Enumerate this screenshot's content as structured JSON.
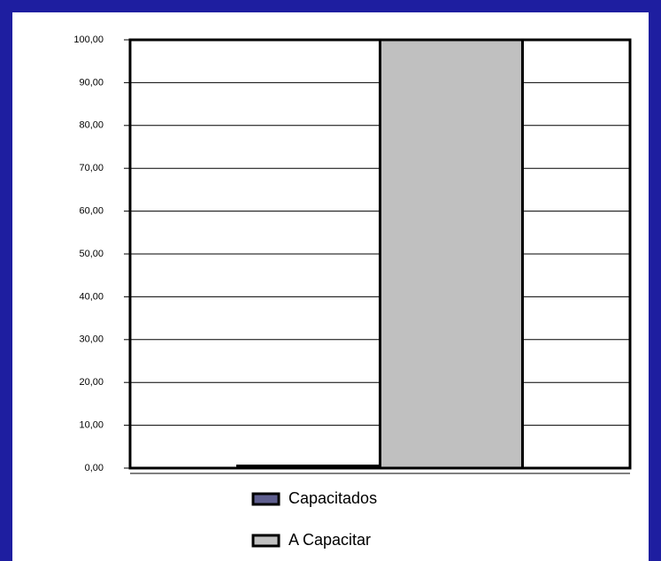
{
  "chart_data": {
    "type": "bar",
    "categories": [
      null
    ],
    "series": [
      {
        "name": "Capacitados",
        "color": "#5f5f8f",
        "values": [
          0.5
        ]
      },
      {
        "name": "A Capacitar",
        "color": "#c0c0c0",
        "values": [
          100
        ]
      }
    ],
    "ylim": [
      0,
      100
    ],
    "yticks": [
      {
        "value": 0,
        "label": "0,00"
      },
      {
        "value": 10,
        "label": "10,00"
      },
      {
        "value": 20,
        "label": "20,00"
      },
      {
        "value": 30,
        "label": "30,00"
      },
      {
        "value": 40,
        "label": "40,00"
      },
      {
        "value": 50,
        "label": "50,00"
      },
      {
        "value": 60,
        "label": "60,00"
      },
      {
        "value": 70,
        "label": "70,00"
      },
      {
        "value": 80,
        "label": "80,00"
      },
      {
        "value": 90,
        "label": "90,00"
      },
      {
        "value": 100,
        "label": "100,00"
      }
    ],
    "grid": true,
    "legend": "bottom"
  }
}
